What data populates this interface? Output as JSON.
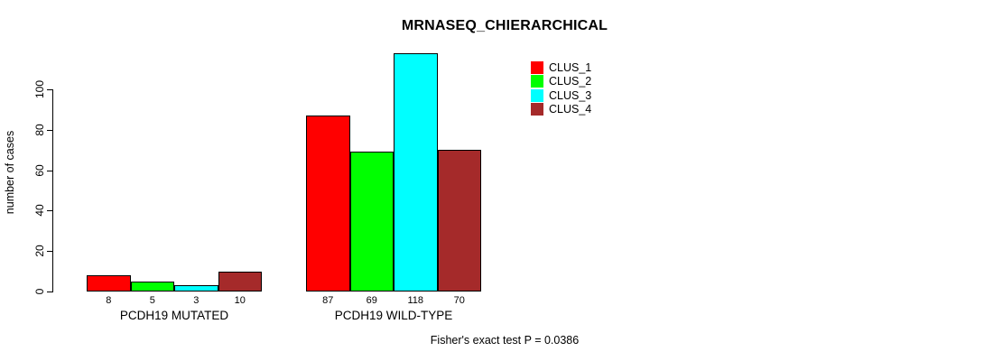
{
  "chart_data": {
    "type": "bar",
    "title": "MRNASEQ_CHIERARCHICAL",
    "ylabel": "number of cases",
    "xlabel": "",
    "categories": [
      "PCDH19 MUTATED",
      "PCDH19 WILD-TYPE"
    ],
    "series": [
      {
        "name": "CLUS_1",
        "color": "#FF0000",
        "values": [
          8,
          87
        ]
      },
      {
        "name": "CLUS_2",
        "color": "#00FF00",
        "values": [
          5,
          69
        ]
      },
      {
        "name": "CLUS_3",
        "color": "#00FFFF",
        "values": [
          3,
          118
        ]
      },
      {
        "name": "CLUS_4",
        "color": "#A52A2A",
        "values": [
          10,
          70
        ]
      }
    ],
    "yticks": [
      0,
      20,
      40,
      60,
      80,
      100
    ],
    "ylim": [
      0,
      118
    ],
    "bar_value_labels": [
      [
        8,
        5,
        3,
        10
      ],
      [
        87,
        69,
        118,
        70
      ]
    ],
    "grid": "off",
    "legend_position": "top-right-inside",
    "annotation": "Fisher's exact test P = 0.0386",
    "colors": {
      "foreground": "#000000",
      "background": "#FFFFFF"
    }
  }
}
